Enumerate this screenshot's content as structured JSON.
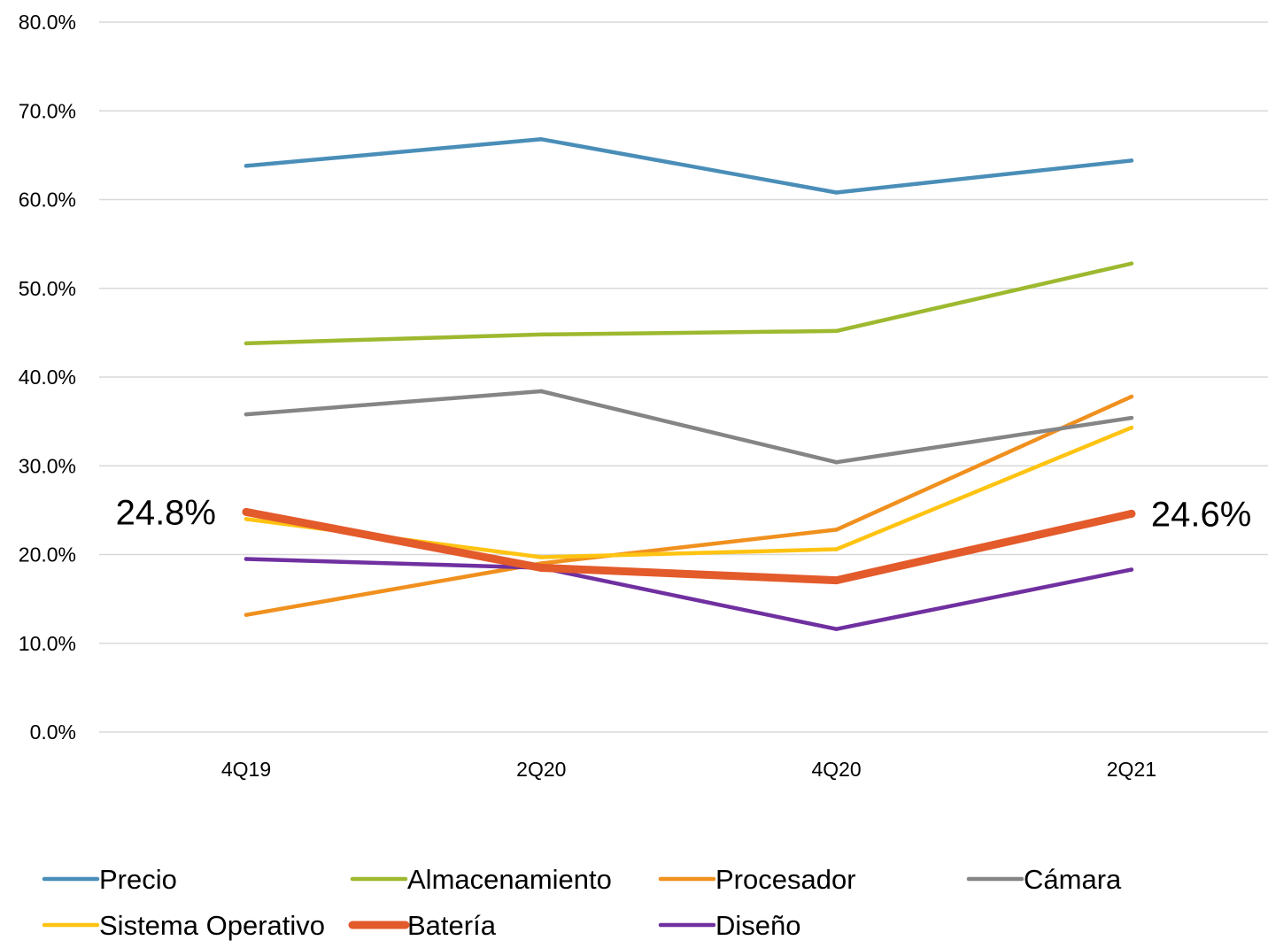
{
  "chart_data": {
    "type": "line",
    "categories": [
      "4Q19",
      "2Q20",
      "4Q20",
      "2Q21"
    ],
    "ylim": [
      0,
      0.8
    ],
    "yticks": [
      0.0,
      0.1,
      0.2,
      0.3,
      0.4,
      0.5,
      0.6,
      0.7,
      0.8
    ],
    "ytick_labels": [
      "0.0%",
      "10.0%",
      "20.0%",
      "30.0%",
      "40.0%",
      "50.0%",
      "60.0%",
      "70.0%",
      "80.0%"
    ],
    "grid": true,
    "legend_position": "bottom",
    "series": [
      {
        "name": "Precio",
        "color": "#4A8EB8",
        "emphasis": false,
        "values": [
          0.638,
          0.668,
          0.608,
          0.644
        ]
      },
      {
        "name": "Almacenamiento",
        "color": "#9DB92F",
        "emphasis": false,
        "values": [
          0.438,
          0.448,
          0.452,
          0.528
        ]
      },
      {
        "name": "Procesador",
        "color": "#F0901E",
        "emphasis": false,
        "values": [
          0.132,
          0.19,
          0.228,
          0.378
        ]
      },
      {
        "name": "Cámara",
        "color": "#858585",
        "emphasis": false,
        "values": [
          0.358,
          0.384,
          0.304,
          0.354
        ]
      },
      {
        "name": "Sistema Operativo",
        "color": "#FFC312",
        "emphasis": false,
        "values": [
          0.24,
          0.197,
          0.206,
          0.343
        ]
      },
      {
        "name": "Batería",
        "color": "#E35A2B",
        "emphasis": true,
        "values": [
          0.248,
          0.185,
          0.171,
          0.246
        ]
      },
      {
        "name": "Diseño",
        "color": "#7030A0",
        "emphasis": false,
        "values": [
          0.195,
          0.185,
          0.116,
          0.183
        ]
      }
    ],
    "annotations": [
      {
        "series": "Batería",
        "index": 0,
        "text": "24.8%"
      },
      {
        "series": "Batería",
        "index": 3,
        "text": "24.6%"
      }
    ]
  }
}
